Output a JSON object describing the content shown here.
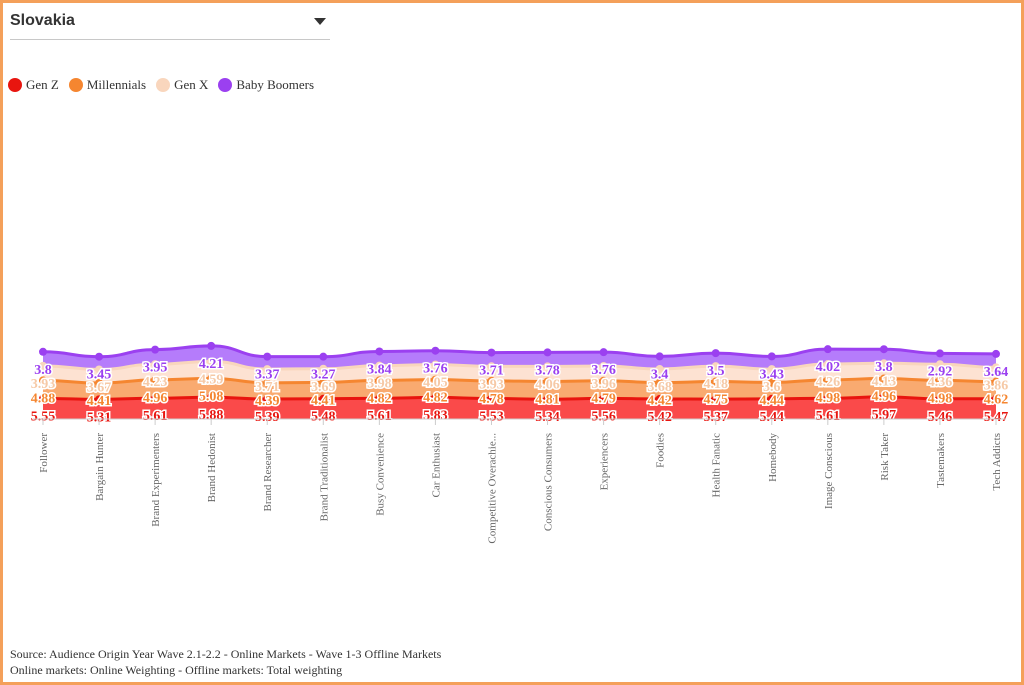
{
  "selector": {
    "value": "Slovakia"
  },
  "legend": [
    {
      "name": "Gen Z",
      "color": "#e8150f"
    },
    {
      "name": "Millennials",
      "color": "#f58630"
    },
    {
      "name": "Gen X",
      "color": "#f9d6bd"
    },
    {
      "name": "Baby Boomers",
      "color": "#9b40f0"
    }
  ],
  "footer": {
    "line1": "Source: Audience Origin Year Wave 2.1-2.2 - Online Markets - Wave 1-3 Offline Markets",
    "line2": "Online markets: Online Weighting - Offline markets: Total weighting"
  },
  "chart_data": {
    "type": "area",
    "stacked": true,
    "legend_position": "top-left",
    "grid": false,
    "categories": [
      "Follower",
      "Bargain Hunter",
      "Brand Experimenters",
      "Brand Hedonist",
      "Brand Researcher",
      "Brand Traditionalist",
      "Busy Convenience",
      "Car Enthusiast",
      "Competitive Overachie...",
      "Conscious Consumers",
      "Experiencers",
      "Foodies",
      "Health Fanatic",
      "Homebody",
      "Image Conscious",
      "Risk Taker",
      "Tastemakers",
      "Tech Addicts"
    ],
    "series": [
      {
        "name": "Gen Z",
        "color": "#e8150f",
        "fill": "#fa4a4a",
        "values": [
          5.55,
          5.31,
          5.61,
          5.88,
          5.39,
          5.48,
          5.61,
          5.83,
          5.53,
          5.34,
          5.56,
          5.42,
          5.37,
          5.44,
          5.61,
          5.97,
          5.46,
          5.47
        ]
      },
      {
        "name": "Millennials",
        "color": "#f58630",
        "fill": "#f9aa70",
        "values": [
          4.88,
          4.41,
          4.96,
          5.08,
          4.39,
          4.41,
          4.82,
          4.82,
          4.78,
          4.81,
          4.79,
          4.42,
          4.75,
          4.44,
          4.98,
          4.96,
          4.98,
          4.62
        ]
      },
      {
        "name": "Gen X",
        "color": "#f9d6bd",
        "fill": "#fde2d2",
        "values": [
          3.93,
          3.67,
          4.23,
          4.59,
          3.71,
          3.69,
          3.98,
          4.05,
          3.93,
          4.06,
          3.96,
          3.68,
          4.18,
          3.6,
          4.26,
          4.13,
          4.36,
          3.86
        ]
      },
      {
        "name": "Baby Boomers",
        "color": "#9b40f0",
        "fill": "#b57cfb",
        "values": [
          3.8,
          3.45,
          3.95,
          4.21,
          3.37,
          3.27,
          3.84,
          3.76,
          3.71,
          3.78,
          3.76,
          3.4,
          3.5,
          3.43,
          4.02,
          3.8,
          2.92,
          3.64
        ]
      }
    ]
  }
}
